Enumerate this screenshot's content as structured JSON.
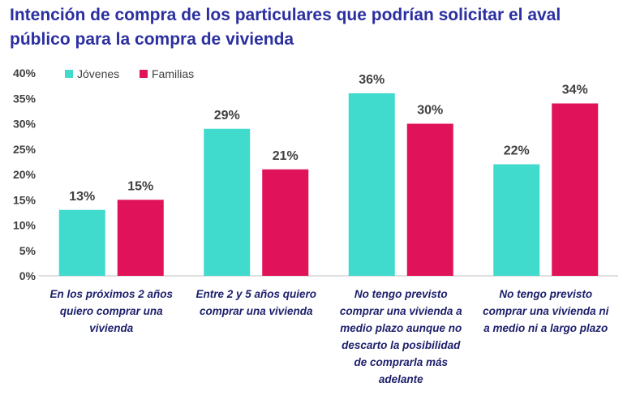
{
  "title": "Intención de compra de los particulares que podrían solicitar el aval público para la compra de vivienda",
  "colors": {
    "title": "#2b2fa0",
    "jovenes": "#40dbcd",
    "familias": "#e0125a",
    "category_text": "#1c1f6b",
    "axis_text": "#404040"
  },
  "chart_data": {
    "type": "bar",
    "title": "Intención de compra de los particulares que podrían solicitar el aval público para la compra de vivienda",
    "xlabel": "",
    "ylabel": "",
    "ylim": [
      0,
      40
    ],
    "yticks": [
      "0%",
      "5%",
      "10%",
      "15%",
      "20%",
      "25%",
      "30%",
      "35%",
      "40%"
    ],
    "grid": false,
    "legend_position": "top-left",
    "categories": [
      "En los próximos 2 años quiero comprar una vivienda",
      "Entre 2 y 5 años quiero comprar una vivienda",
      "No tengo previsto comprar una vivienda a medio plazo aunque no descarto la posibilidad de comprarla más adelante",
      "No tengo previsto comprar una vivienda ni a medio ni a largo plazo"
    ],
    "series": [
      {
        "name": "Jóvenes",
        "values": [
          13,
          29,
          36,
          22
        ],
        "labels": [
          "13%",
          "29%",
          "36%",
          "22%"
        ]
      },
      {
        "name": "Familias",
        "values": [
          15,
          21,
          30,
          34
        ],
        "labels": [
          "15%",
          "21%",
          "30%",
          "34%"
        ]
      }
    ]
  }
}
